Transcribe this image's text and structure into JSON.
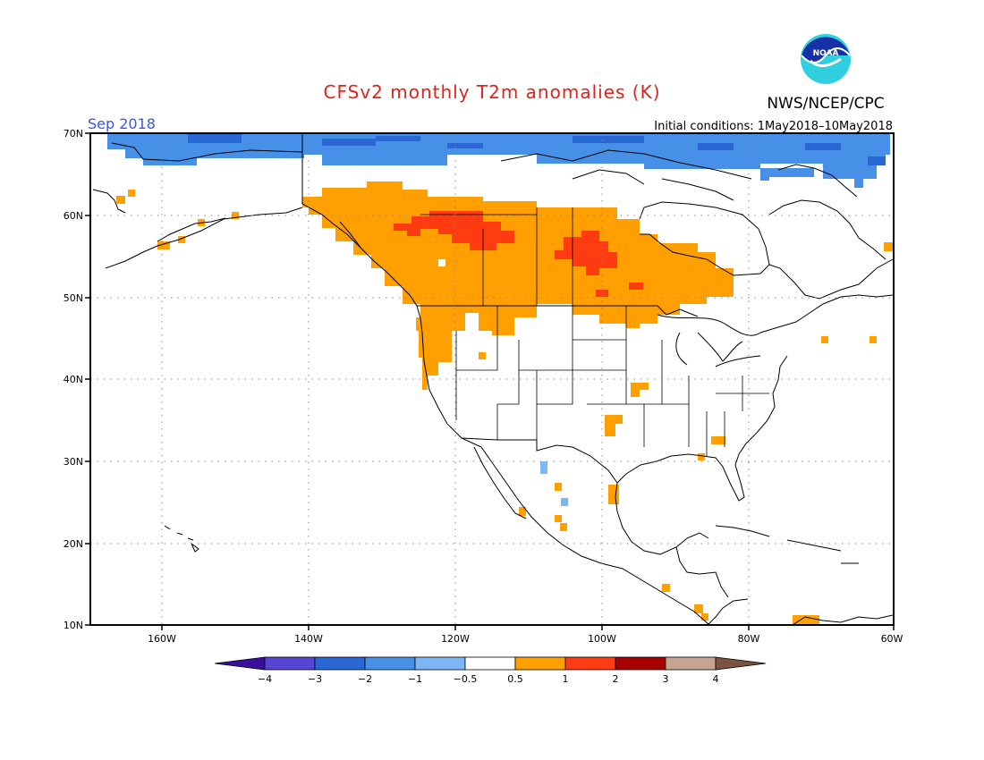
{
  "title": "CFSv2 monthly T2m anomalies (K)",
  "agency": "NWS/NCEP/CPC",
  "logo_text": "NOAA",
  "month": "Sep 2018",
  "initial_conditions": "Initial conditions: 1May2018–10May2018",
  "lat_labels": [
    "70N",
    "60N",
    "50N",
    "40N",
    "30N",
    "20N",
    "10N"
  ],
  "lon_labels": [
    "160W",
    "140W",
    "120W",
    "100W",
    "80W",
    "60W"
  ],
  "colorbar": {
    "labels": [
      "−4",
      "−3",
      "−2",
      "−1",
      "−0.5",
      "0.5",
      "1",
      "2",
      "3",
      "4"
    ],
    "colors": [
      "#3a0f9e",
      "#5546d6",
      "#2a66d4",
      "#4690e8",
      "#7cb6f4",
      "#ffffff",
      "#ffa000",
      "#ff3b12",
      "#a80000",
      "#c8a394",
      "#7d523e"
    ]
  },
  "colors": {
    "title": "#e0231d",
    "month": "#3b56e0",
    "coast": "#000000",
    "grid": "#8a8a8a"
  }
}
